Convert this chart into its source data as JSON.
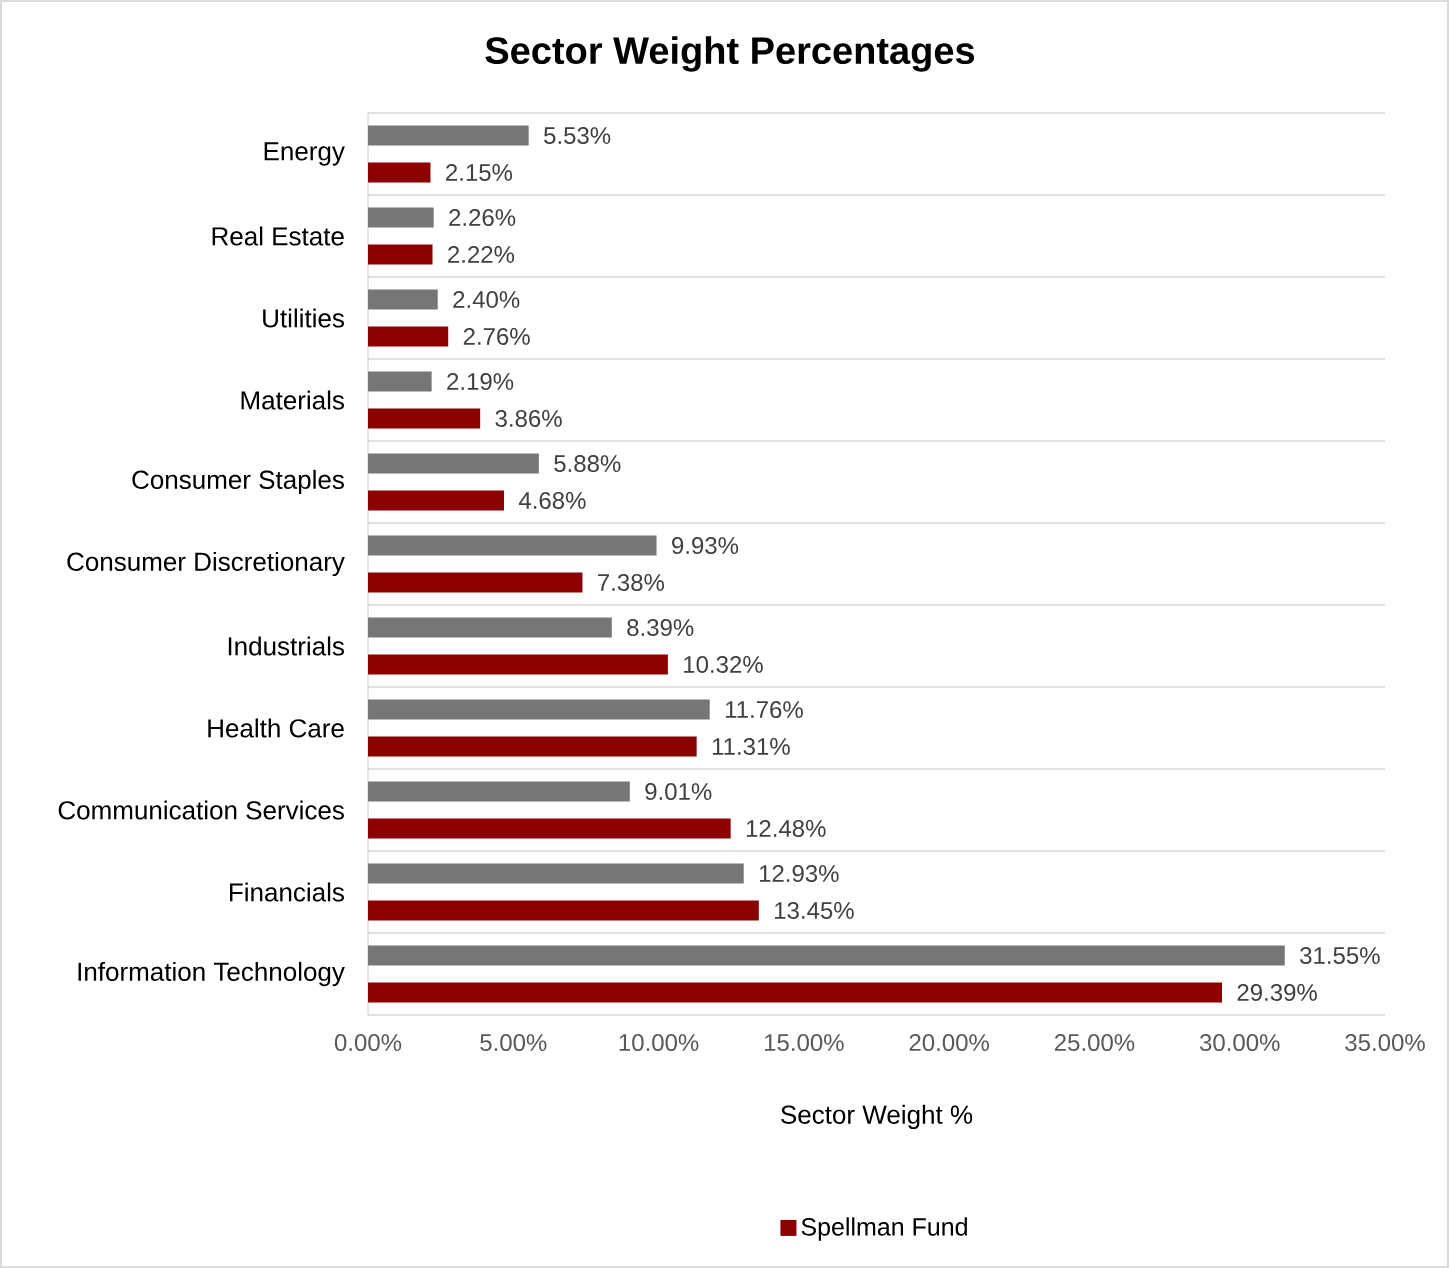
{
  "chart_data": {
    "type": "bar",
    "orientation": "horizontal",
    "title": "Sector Weight Percentages",
    "xlabel": "Sector Weight %",
    "categories": [
      "Energy",
      "Real Estate",
      "Utilities",
      "Materials",
      "Consumer Staples",
      "Consumer Discretionary",
      "Industrials",
      "Health Care",
      "Communication Services",
      "Financials",
      "Information Technology"
    ],
    "series": [
      {
        "color": "#767676",
        "values": [
          5.53,
          2.26,
          2.4,
          2.19,
          5.88,
          9.93,
          8.39,
          11.76,
          9.01,
          12.93,
          31.55
        ],
        "value_labels": [
          "5.53%",
          "2.26%",
          "2.40%",
          "2.19%",
          "5.88%",
          "9.93%",
          "8.39%",
          "11.76%",
          "9.01%",
          "12.93%",
          "31.55%"
        ]
      },
      {
        "name": "Spellman Fund",
        "color": "#8b0000",
        "values": [
          2.15,
          2.22,
          2.76,
          3.86,
          4.68,
          7.38,
          10.32,
          11.31,
          12.48,
          13.45,
          29.39
        ],
        "value_labels": [
          "2.15%",
          "2.22%",
          "2.76%",
          "3.86%",
          "4.68%",
          "7.38%",
          "10.32%",
          "11.31%",
          "12.48%",
          "13.45%",
          "29.39%"
        ]
      }
    ],
    "xlim": [
      0,
      35
    ],
    "xticks": [
      {
        "value": 0,
        "label": "0.00%"
      },
      {
        "value": 5,
        "label": "5.00%"
      },
      {
        "value": 10,
        "label": "10.00%"
      },
      {
        "value": 15,
        "label": "15.00%"
      },
      {
        "value": 20,
        "label": "20.00%"
      },
      {
        "value": 25,
        "label": "25.00%"
      },
      {
        "value": 30,
        "label": "30.00%"
      },
      {
        "value": 35,
        "label": "35.00%"
      }
    ],
    "grid": "y",
    "legend": "bottom"
  }
}
